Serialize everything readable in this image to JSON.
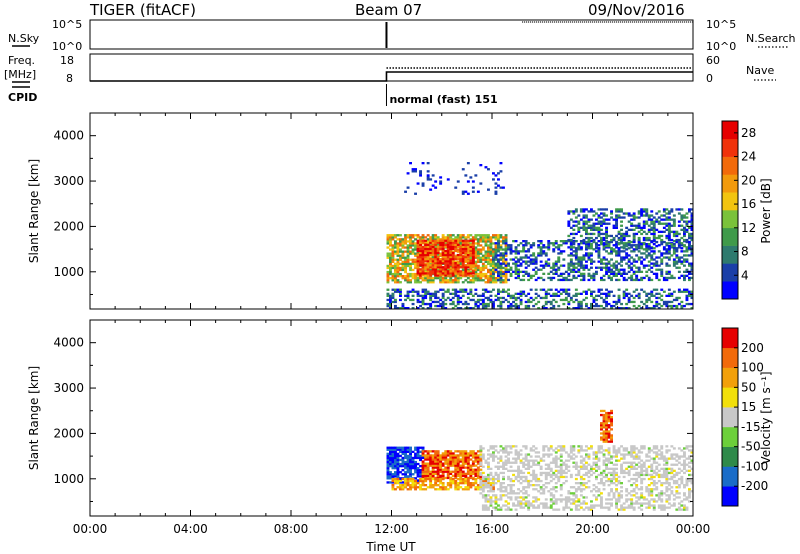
{
  "header": {
    "radar": "TIGER (fitACF)",
    "beam": "Beam 07",
    "date": "09/Nov/2016"
  },
  "nsky_panel": {
    "left_label": "N.Sky",
    "right_label": "N.Search",
    "yticks_left": [
      "10^5",
      "10^0"
    ],
    "yticks_right": [
      "10^5",
      "10^0"
    ]
  },
  "freq_panel": {
    "left_label_top": "Freq.",
    "left_label_unit": "[MHz]",
    "right_label": "Nave",
    "yticks_left": [
      "18",
      "8"
    ],
    "yticks_right": [
      "60",
      "0"
    ]
  },
  "cpid": {
    "label": "CPID",
    "mode_text": "normal (fast) 151",
    "start_hour": 11.8
  },
  "chart_data": [
    {
      "type": "heatmap",
      "name": "power",
      "xlabel": "",
      "ylabel": "Slant Range [km]",
      "xlim": [
        0,
        24
      ],
      "ylim": [
        180,
        4500
      ],
      "yticks": [
        1000,
        2000,
        3000,
        4000
      ],
      "colorbar": {
        "label": "Power [dB]",
        "ticks": [
          "4",
          "8",
          "12",
          "16",
          "20",
          "24",
          "28"
        ],
        "colors": [
          "#0000ff",
          "#1a3fa8",
          "#2e7a6e",
          "#3f9a4a",
          "#7ac23a",
          "#f2c40f",
          "#f29a0c",
          "#f26a0a",
          "#f0320a",
          "#e60000"
        ],
        "range": [
          0,
          30
        ]
      },
      "regions": [
        {
          "t": [
            11.8,
            16.5
          ],
          "r": [
            750,
            1800
          ],
          "level": "high"
        },
        {
          "t": [
            13.0,
            15.2
          ],
          "r": [
            900,
            1700
          ],
          "level": "peak"
        },
        {
          "t": [
            16.0,
            24.0
          ],
          "r": [
            800,
            1700
          ],
          "level": "low"
        },
        {
          "t": [
            19.0,
            24.0
          ],
          "r": [
            1500,
            2400
          ],
          "level": "low"
        },
        {
          "t": [
            11.8,
            24.0
          ],
          "r": [
            180,
            600
          ],
          "level": "low"
        },
        {
          "t": [
            12.5,
            16.5
          ],
          "r": [
            2700,
            3400
          ],
          "level": "sparse"
        }
      ]
    },
    {
      "type": "heatmap",
      "name": "velocity",
      "xlabel": "Time UT",
      "ylabel": "Slant Range [km]",
      "xlim": [
        0,
        24
      ],
      "ylim": [
        180,
        4500
      ],
      "xticks": [
        "00:00",
        "04:00",
        "08:00",
        "12:00",
        "16:00",
        "20:00",
        "00:00"
      ],
      "yticks": [
        1000,
        2000,
        3000,
        4000
      ],
      "colorbar": {
        "label": "Velocity [m s⁻¹]",
        "ticks": [
          "200",
          "100",
          "50",
          "15",
          "-15",
          "-50",
          "-100",
          "-200"
        ],
        "colors": [
          "#0000ff",
          "#1a6cc8",
          "#2f8a4a",
          "#6ccf3a",
          "#c8c8c8",
          "#f2e00a",
          "#f2a00a",
          "#f26a0a",
          "#e60000"
        ],
        "range": [
          -250,
          250
        ]
      },
      "regions": [
        {
          "t": [
            11.8,
            13.2
          ],
          "r": [
            900,
            1700
          ],
          "level": "blue"
        },
        {
          "t": [
            13.2,
            15.5
          ],
          "r": [
            1000,
            1600
          ],
          "level": "red"
        },
        {
          "t": [
            12.0,
            16.0
          ],
          "r": [
            750,
            1000
          ],
          "level": "orange"
        },
        {
          "t": [
            15.5,
            24.0
          ],
          "r": [
            300,
            1700
          ],
          "level": "grey"
        },
        {
          "t": [
            20.3,
            20.8
          ],
          "r": [
            1800,
            2500
          ],
          "level": "red"
        }
      ]
    }
  ]
}
